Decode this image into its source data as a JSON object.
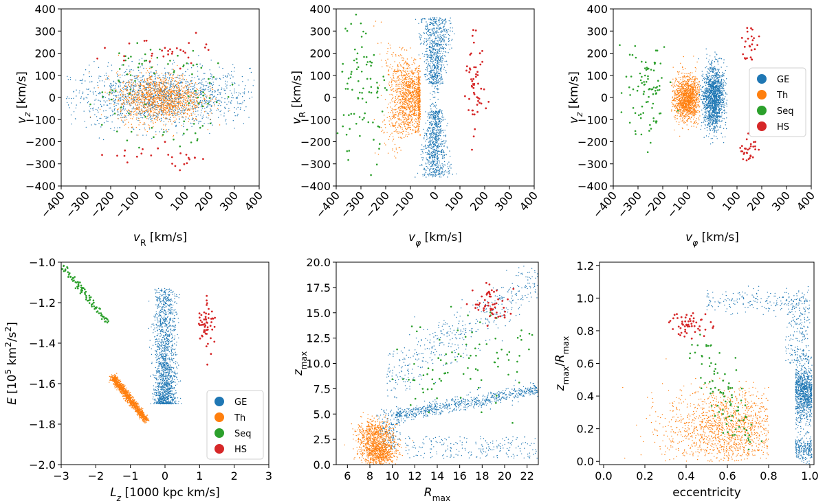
{
  "colors": {
    "GE": "#1f77b4",
    "Th": "#ff7f0e",
    "Seq": "#2ca02c",
    "HS": "#d62728"
  },
  "chart_data": [
    {
      "type": "scatter",
      "id": "p1",
      "xlabel": "v_R [km/s]",
      "ylabel": "v_z [km/s]",
      "xlim": [
        -400,
        400
      ],
      "ylim": [
        -400,
        400
      ],
      "xticks": [
        -400,
        -300,
        -200,
        -100,
        0,
        100,
        200,
        300,
        400
      ],
      "yticks": [
        -400,
        -300,
        -200,
        -100,
        0,
        100,
        200,
        300,
        400
      ],
      "xtick_rotation": 50,
      "series": [
        {
          "key": "GE",
          "n": 1500,
          "shape": "ellipse",
          "cx": 0,
          "cy": 0,
          "sx": 180,
          "sy": 65,
          "clipx": [
            -380,
            380
          ],
          "clipy": [
            -200,
            200
          ]
        },
        {
          "key": "Th",
          "n": 1300,
          "shape": "gauss",
          "cx": 0,
          "cy": -5,
          "sx": 85,
          "sy": 55
        },
        {
          "key": "Seq",
          "n": 90,
          "shape": "ring",
          "cx": 0,
          "cy": 0,
          "rx": 190,
          "ry": 180,
          "jit": 60
        },
        {
          "key": "HS",
          "n": 55,
          "shape": "split",
          "cx": 0,
          "sx": 110,
          "ys": [
            210,
            -260
          ],
          "sy": 30
        }
      ],
      "legend": null
    },
    {
      "type": "scatter",
      "id": "p2",
      "xlabel": "v_φ [km/s]",
      "ylabel": "v_R [km/s]",
      "xlim": [
        -400,
        400
      ],
      "ylim": [
        -400,
        400
      ],
      "xticks": [
        -400,
        -300,
        -200,
        -100,
        0,
        100,
        200,
        300,
        400
      ],
      "yticks": [
        -400,
        -300,
        -200,
        -100,
        0,
        100,
        200,
        300,
        400
      ],
      "xtick_rotation": 50,
      "series": [
        {
          "key": "GE",
          "n": 1500,
          "shape": "hourglass",
          "cx": 0,
          "sx": 18,
          "ylo": -360,
          "yhi": 360
        },
        {
          "key": "Th",
          "n": 1300,
          "shape": "crescent",
          "cx": -95,
          "sx": 40,
          "sy": 90
        },
        {
          "key": "Seq",
          "n": 90,
          "shape": "gauss",
          "cx": -300,
          "cy": 20,
          "sx": 55,
          "sy": 140
        },
        {
          "key": "HS",
          "n": 55,
          "shape": "gauss",
          "cx": 160,
          "cy": 20,
          "sx": 20,
          "sy": 110
        }
      ],
      "legend": null
    },
    {
      "type": "scatter",
      "id": "p3",
      "xlabel": "v_φ [km/s]",
      "ylabel": "v_z [km/s]",
      "xlim": [
        -400,
        400
      ],
      "ylim": [
        -400,
        400
      ],
      "xticks": [
        -400,
        -300,
        -200,
        -100,
        0,
        100,
        200,
        300,
        400
      ],
      "yticks": [
        -400,
        -300,
        -200,
        -100,
        0,
        100,
        200,
        300,
        400
      ],
      "xtick_rotation": 50,
      "series": [
        {
          "key": "GE",
          "n": 1500,
          "shape": "gauss",
          "cx": 5,
          "cy": 0,
          "sx": 22,
          "sy": 70,
          "clipx": [
            -55,
            60
          ]
        },
        {
          "key": "Th",
          "n": 1300,
          "shape": "gauss",
          "cx": -100,
          "cy": -5,
          "sx": 28,
          "sy": 50,
          "clipx": [
            -165,
            -50
          ]
        },
        {
          "key": "Seq",
          "n": 90,
          "shape": "gauss",
          "cx": -260,
          "cy": 20,
          "sx": 50,
          "sy": 110
        },
        {
          "key": "HS",
          "n": 55,
          "shape": "split",
          "cx": 150,
          "sx": 18,
          "ys": [
            240,
            -240
          ],
          "sy": 30
        }
      ],
      "legend": {
        "position": "right",
        "entries": [
          "GE",
          "Th",
          "Seq",
          "HS"
        ]
      }
    },
    {
      "type": "scatter",
      "id": "p4",
      "xlabel": "L_z [1000 kpc km/s]",
      "ylabel": "E [10^5 km^2/s^2]",
      "xlim": [
        -3,
        3
      ],
      "ylim": [
        -2.0,
        -1.0
      ],
      "xticks": [
        -3,
        -2,
        -1,
        0,
        1,
        2,
        3
      ],
      "yticks": [
        -2.0,
        -1.8,
        -1.6,
        -1.4,
        -1.2,
        -1.0
      ],
      "ytick_labels": [
        "−2.0",
        "−1.8",
        "−1.6",
        "−1.4",
        "−1.2",
        "−1.0"
      ],
      "xtick_rotation": 0,
      "series": [
        {
          "key": "GE",
          "n": 1500,
          "shape": "column",
          "cx": 0,
          "sx": 0.16,
          "ylo": -1.7,
          "yhi": -1.13,
          "dense_low": true
        },
        {
          "key": "Th",
          "n": 1300,
          "shape": "diag",
          "x0": -1.5,
          "y0": -1.57,
          "x1": -0.55,
          "y1": -1.78,
          "spread": 0.05
        },
        {
          "key": "Seq",
          "n": 90,
          "shape": "diag",
          "x0": -2.95,
          "y0": -1.02,
          "x1": -1.65,
          "y1": -1.3,
          "spread": 0.05
        },
        {
          "key": "HS",
          "n": 55,
          "shape": "gauss",
          "cx": 1.2,
          "cy": -1.3,
          "sx": 0.12,
          "sy": 0.07
        }
      ],
      "legend": {
        "position": "lower right",
        "entries": [
          "GE",
          "Th",
          "Seq",
          "HS"
        ]
      }
    },
    {
      "type": "scatter",
      "id": "p5",
      "xlabel": "R_max",
      "ylabel": "z_max",
      "xlim": [
        5,
        23
      ],
      "ylim": [
        0,
        20
      ],
      "xticks": [
        6,
        8,
        10,
        12,
        14,
        16,
        18,
        20,
        22
      ],
      "yticks": [
        0.0,
        2.5,
        5.0,
        7.5,
        10.0,
        12.5,
        15.0,
        17.5,
        20.0
      ],
      "ytick_labels": [
        "0.0",
        "2.5",
        "5.0",
        "7.5",
        "10.0",
        "12.5",
        "15.0",
        "17.5",
        "20.0"
      ],
      "xtick_rotation": 0,
      "series": [
        {
          "key": "GE",
          "n": 1500,
          "shape": "bands"
        },
        {
          "key": "Th",
          "n": 1300,
          "shape": "blob2",
          "c1": [
            8.8,
            1.2
          ],
          "c2": [
            8.4,
            3.0
          ],
          "sx": 0.8,
          "sy": 0.7
        },
        {
          "key": "Seq",
          "n": 90,
          "shape": "diag",
          "x0": 12,
          "y0": 9.5,
          "x1": 22,
          "y1": 12,
          "spread": 2.0
        },
        {
          "key": "HS",
          "n": 55,
          "shape": "gauss",
          "cx": 18.8,
          "cy": 15.8,
          "sx": 0.8,
          "sy": 0.9
        }
      ],
      "legend": null
    },
    {
      "type": "scatter",
      "id": "p6",
      "xlabel": "eccentricity",
      "ylabel": "z_max/R_max",
      "xlim": [
        -0.02,
        1.02
      ],
      "ylim": [
        -0.02,
        1.22
      ],
      "xticks": [
        0.0,
        0.2,
        0.4,
        0.6,
        0.8,
        1.0
      ],
      "yticks": [
        0.0,
        0.2,
        0.4,
        0.6,
        0.8,
        1.0,
        1.2
      ],
      "xtick_labels": [
        "0.0",
        "0.2",
        "0.4",
        "0.6",
        "0.8",
        "1.0"
      ],
      "ytick_labels": [
        "0.0",
        "0.2",
        "0.4",
        "0.6",
        "0.8",
        "1.0",
        "1.2"
      ],
      "xtick_rotation": 0,
      "series": [
        {
          "key": "GE",
          "n": 1500,
          "shape": "ecc"
        },
        {
          "key": "Th",
          "n": 1300,
          "shape": "gauss",
          "cx": 0.6,
          "cy": 0.2,
          "sx": 0.15,
          "sy": 0.12,
          "clipx": [
            0.02,
            0.8
          ],
          "clipy": [
            0.0,
            0.8
          ]
        },
        {
          "key": "Seq",
          "n": 90,
          "shape": "diag",
          "x0": 0.45,
          "y0": 0.75,
          "x1": 0.7,
          "y1": 0.1,
          "spread": 0.04
        },
        {
          "key": "HS",
          "n": 55,
          "shape": "gauss",
          "cx": 0.42,
          "cy": 0.84,
          "sx": 0.05,
          "sy": 0.04
        }
      ],
      "legend": null
    }
  ]
}
